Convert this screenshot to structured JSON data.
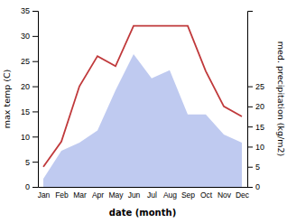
{
  "chart_data": {
    "type": "line",
    "categories": [
      "Jan",
      "Feb",
      "Mar",
      "Apr",
      "May",
      "Jun",
      "Jul",
      "Aug",
      "Sep",
      "Oct",
      "Nov",
      "Dec"
    ],
    "xlabel": "date (month)",
    "ylabel": "max temp (C)",
    "y2label": "med. precipitation (kg/m2)",
    "ylim": [
      0,
      35
    ],
    "yticks": [
      0,
      5,
      10,
      15,
      20,
      25,
      30,
      35
    ],
    "y2lim": [
      0,
      43.75
    ],
    "y2ticks": [
      0,
      5,
      10,
      15,
      20,
      25
    ],
    "series": [
      {
        "type": "area",
        "axis": "y2",
        "color": "#b8c4ee",
        "values": [
          2,
          9,
          11,
          14,
          24,
          33,
          27,
          29,
          18,
          18,
          13,
          11
        ]
      },
      {
        "type": "line",
        "color": "#c0393b",
        "values": [
          4,
          9,
          20,
          26,
          24,
          32,
          32,
          32,
          32,
          23,
          16,
          14
        ]
      }
    ]
  }
}
